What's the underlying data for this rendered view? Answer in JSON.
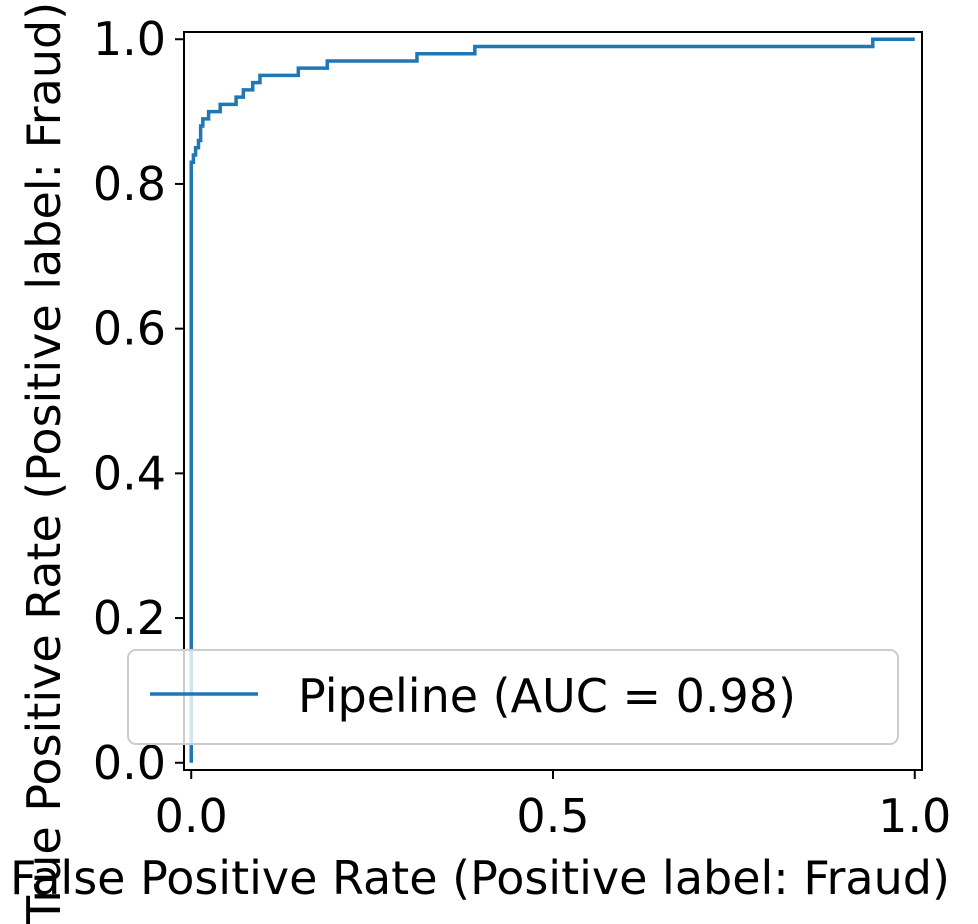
{
  "chart_data": {
    "type": "line",
    "title": "",
    "xlabel": "False Positive Rate (Positive label: Fraud)",
    "ylabel": "True Positive Rate (Positive label: Fraud)",
    "xlim": [
      -0.01,
      1.01
    ],
    "ylim": [
      -0.01,
      1.01
    ],
    "x_ticks": [
      0.0,
      0.5,
      1.0
    ],
    "x_tick_labels": [
      "0.0",
      "0.5",
      "1.0"
    ],
    "y_ticks": [
      0.0,
      0.2,
      0.4,
      0.6,
      0.8,
      1.0
    ],
    "y_tick_labels": [
      "0.0",
      "0.2",
      "0.4",
      "0.6",
      "0.8",
      "1.0"
    ],
    "grid": false,
    "legend_position": "lower-right",
    "series": [
      {
        "name": "Pipeline (AUC = 0.98)",
        "color": "#1f77b4",
        "x": [
          0.0,
          0.0,
          0.003,
          0.003,
          0.006,
          0.006,
          0.01,
          0.01,
          0.013,
          0.013,
          0.016,
          0.016,
          0.024,
          0.024,
          0.04,
          0.04,
          0.062,
          0.062,
          0.072,
          0.072,
          0.085,
          0.085,
          0.095,
          0.095,
          0.148,
          0.148,
          0.188,
          0.188,
          0.312,
          0.312,
          0.392,
          0.392,
          0.942,
          0.942,
          1.0
        ],
        "y": [
          0.0,
          0.83,
          0.83,
          0.84,
          0.84,
          0.85,
          0.85,
          0.86,
          0.86,
          0.88,
          0.88,
          0.89,
          0.89,
          0.9,
          0.9,
          0.91,
          0.91,
          0.92,
          0.92,
          0.93,
          0.93,
          0.94,
          0.94,
          0.95,
          0.95,
          0.96,
          0.96,
          0.97,
          0.97,
          0.98,
          0.98,
          0.99,
          0.99,
          1.0,
          1.0
        ]
      }
    ]
  }
}
